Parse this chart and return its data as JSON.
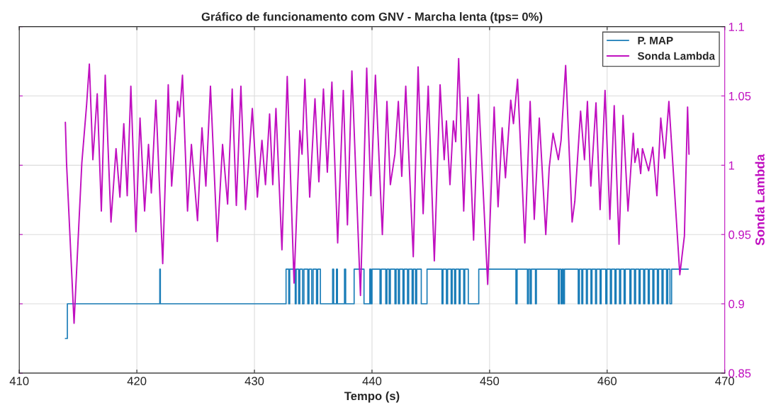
{
  "chart_data": {
    "type": "line",
    "title": "Gráfico de funcionamento com GNV - Marcha lenta (tps= 0%)",
    "xlabel": "Tempo (s)",
    "ylabel": "Sonda Lambda",
    "xlim": [
      410,
      470
    ],
    "xticks": [
      410,
      420,
      430,
      440,
      450,
      460,
      470
    ],
    "ylim": [
      0.85,
      1.1
    ],
    "yticks": [
      0.85,
      0.9,
      0.95,
      1,
      1.05,
      1.1
    ],
    "grid": true,
    "legend": "top right",
    "series": [
      {
        "name": "P. MAP",
        "type": "step",
        "color": "#1a7db8",
        "x": [
          413.92,
          414.09,
          421.95,
          422.0,
          432.69,
          432.92,
          433.0,
          433.47,
          433.55,
          433.76,
          433.86,
          434.09,
          434.21,
          434.54,
          434.64,
          434.87,
          434.99,
          435.28,
          435.38,
          435.61,
          436.65,
          436.74,
          436.98,
          437.06,
          437.66,
          437.76,
          438.48,
          439.32,
          439.81,
          439.9,
          440.0,
          440.68,
          440.78,
          441.17,
          441.27,
          441.46,
          441.56,
          441.95,
          442.05,
          442.24,
          442.34,
          442.63,
          442.73,
          443.02,
          443.12,
          443.41,
          443.51,
          443.7,
          443.8,
          444.19,
          444.68,
          445.95,
          446.04,
          446.33,
          446.43,
          446.73,
          446.82,
          447.02,
          447.12,
          447.41,
          447.5,
          447.8,
          447.89,
          448.19,
          449.08,
          452.24,
          452.34,
          453.22,
          453.31,
          453.45,
          453.55,
          453.9,
          453.98,
          455.85,
          455.93,
          456.08,
          456.18,
          456.28,
          456.37,
          457.54,
          457.64,
          457.84,
          457.93,
          458.23,
          458.32,
          458.62,
          458.71,
          459.01,
          459.1,
          459.4,
          459.49,
          459.88,
          459.98,
          460.27,
          460.37,
          460.66,
          460.76,
          461.05,
          461.15,
          461.44,
          461.54,
          461.93,
          462.03,
          462.32,
          462.42,
          462.71,
          462.81,
          463.1,
          463.2,
          463.49,
          463.59,
          463.88,
          463.98,
          464.27,
          464.37,
          464.66,
          464.76,
          465.05,
          465.15,
          465.34,
          465.48,
          466.9
        ],
        "values": [
          0.875,
          0.9,
          0.925,
          0.9,
          0.925,
          0.9,
          0.925,
          0.9,
          0.925,
          0.9,
          0.925,
          0.9,
          0.925,
          0.9,
          0.925,
          0.9,
          0.925,
          0.9,
          0.925,
          0.9,
          0.925,
          0.9,
          0.925,
          0.9,
          0.925,
          0.9,
          0.925,
          0.9,
          0.925,
          0.9,
          0.925,
          0.9,
          0.925,
          0.9,
          0.925,
          0.9,
          0.925,
          0.9,
          0.925,
          0.9,
          0.925,
          0.9,
          0.925,
          0.9,
          0.925,
          0.9,
          0.925,
          0.9,
          0.925,
          0.9,
          0.925,
          0.9,
          0.925,
          0.9,
          0.925,
          0.9,
          0.925,
          0.9,
          0.925,
          0.9,
          0.925,
          0.9,
          0.925,
          0.9,
          0.925,
          0.9,
          0.925,
          0.9,
          0.925,
          0.9,
          0.925,
          0.9,
          0.925,
          0.9,
          0.925,
          0.9,
          0.925,
          0.9,
          0.925,
          0.9,
          0.925,
          0.9,
          0.925,
          0.9,
          0.925,
          0.9,
          0.925,
          0.9,
          0.925,
          0.9,
          0.925,
          0.9,
          0.925,
          0.9,
          0.925,
          0.9,
          0.925,
          0.9,
          0.925,
          0.9,
          0.925,
          0.9,
          0.925,
          0.9,
          0.925,
          0.9,
          0.925,
          0.9,
          0.925,
          0.9,
          0.925,
          0.9,
          0.925,
          0.9,
          0.925,
          0.9,
          0.925,
          0.9,
          0.925,
          0.9,
          0.925,
          0.925
        ]
      },
      {
        "name": "Sonda Lambda",
        "color": "#c010c0",
        "x": [
          413.92,
          414.02,
          414.66,
          415.32,
          415.73,
          415.96,
          416.26,
          416.63,
          416.98,
          417.31,
          417.8,
          418.23,
          418.56,
          418.89,
          419.18,
          419.49,
          419.92,
          420.27,
          420.66,
          420.99,
          421.23,
          421.62,
          422.2,
          422.67,
          422.96,
          423.47,
          423.63,
          423.88,
          424.31,
          424.64,
          425.16,
          425.54,
          425.87,
          426.26,
          426.84,
          427.29,
          427.72,
          428.11,
          428.46,
          428.85,
          429.24,
          429.82,
          430.25,
          430.64,
          430.94,
          431.29,
          431.56,
          431.83,
          432.34,
          432.79,
          433.37,
          433.86,
          434.05,
          434.29,
          434.7,
          435.15,
          435.48,
          435.87,
          436.2,
          436.59,
          437.08,
          437.56,
          437.91,
          438.29,
          439.02,
          439.55,
          439.9,
          440.29,
          440.88,
          441.27,
          441.56,
          441.95,
          442.24,
          442.53,
          442.87,
          443.51,
          443.92,
          444.35,
          444.78,
          445.3,
          445.79,
          446.14,
          446.33,
          446.63,
          446.92,
          447.12,
          447.37,
          447.8,
          448.15,
          448.64,
          449.06,
          449.84,
          450.39,
          450.72,
          451.07,
          451.35,
          451.8,
          452.03,
          452.38,
          453.0,
          453.45,
          453.8,
          454.23,
          454.78,
          455.07,
          455.4,
          455.85,
          456.08,
          456.47,
          457.02,
          457.25,
          457.74,
          458.07,
          458.32,
          458.61,
          459.05,
          459.4,
          459.82,
          460.23,
          460.6,
          461.01,
          461.35,
          461.77,
          462.22,
          462.36,
          462.61,
          462.85,
          463.0,
          463.53,
          463.88,
          464.23,
          464.56,
          464.89,
          465.25,
          466.18,
          466.57,
          466.84,
          466.96
        ],
        "values": [
          1.031,
          1.0015,
          0.886,
          1.0015,
          1.044,
          1.073,
          1.004,
          1.0515,
          0.967,
          1.065,
          0.959,
          1.012,
          0.977,
          1.03,
          0.978,
          1.057,
          0.952,
          1.034,
          0.967,
          1.015,
          0.98,
          1.047,
          0.929,
          1.058,
          0.985,
          1.046,
          1.035,
          1.065,
          0.967,
          1.015,
          0.96,
          1.027,
          0.985,
          1.057,
          0.945,
          1.015,
          0.972,
          1.055,
          0.971,
          1.057,
          0.968,
          1.041,
          0.977,
          1.018,
          0.986,
          1.037,
          0.986,
          1.041,
          0.939,
          1.064,
          0.915,
          1.025,
          1.008,
          1.062,
          0.977,
          1.048,
          0.988,
          1.055,
          0.995,
          1.06,
          0.944,
          1.054,
          0.957,
          1.068,
          0.906,
          1.07,
          0.978,
          1.065,
          0.95,
          1.046,
          0.986,
          1.008,
          1.046,
          0.992,
          1.057,
          0.934,
          1.071,
          0.965,
          1.057,
          0.931,
          1.058,
          1.004,
          1.032,
          0.986,
          1.032,
          1.017,
          1.077,
          0.967,
          1.049,
          0.946,
          1.051,
          0.914,
          1.042,
          0.97,
          1.027,
          0.991,
          1.047,
          1.03,
          1.062,
          0.944,
          1.046,
          0.961,
          1.034,
          0.95,
          0.998,
          1.023,
          1.004,
          1.018,
          1.072,
          0.959,
          0.974,
          1.039,
          1.004,
          1.046,
          0.985,
          1.045,
          0.968,
          1.054,
          0.961,
          1.043,
          0.943,
          1.036,
          0.967,
          1.023,
          1.002,
          1.012,
          0.994,
          1.012,
          0.996,
          1.013,
          0.978,
          1.034,
          1.005,
          1.046,
          0.921,
          0.949,
          1.042,
          1.008
        ]
      }
    ]
  }
}
